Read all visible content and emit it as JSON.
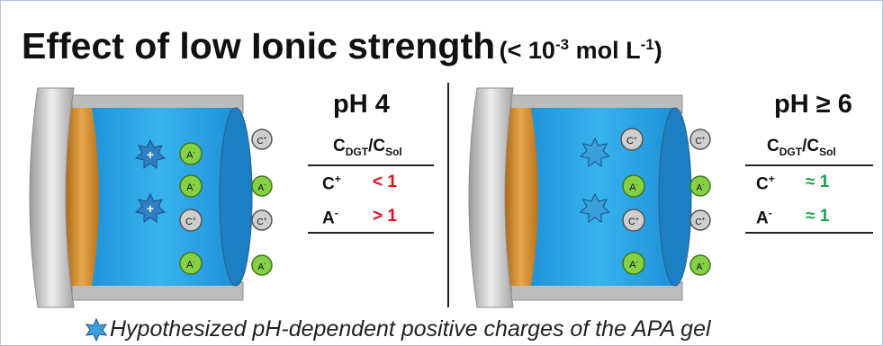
{
  "title": {
    "main": "Effect of low Ionic strength",
    "paren_prefix": "(< 10",
    "paren_exp1": "-3",
    "paren_mid": " mol L",
    "paren_exp2": "-1",
    "paren_suffix": ")"
  },
  "left_panel": {
    "ph_label": "pH 4",
    "header_main": "C",
    "header_sub1": "DGT",
    "header_slash": "/C",
    "header_sub2": "Sol",
    "rows": [
      {
        "ion": "C",
        "charge": "+",
        "value": "< 1",
        "color": "#e0101a"
      },
      {
        "ion": "A",
        "charge": "-",
        "value": "> 1",
        "color": "#e0101a"
      }
    ]
  },
  "right_panel": {
    "ph_label": "pH ≥ 6",
    "header_main": "C",
    "header_sub1": "DGT",
    "header_slash": "/C",
    "header_sub2": "Sol",
    "rows": [
      {
        "ion": "C",
        "charge": "+",
        "value": "≈ 1",
        "color": "#1aa34a"
      },
      {
        "ion": "A",
        "charge": "-",
        "value": "≈ 1",
        "color": "#1aa34a"
      }
    ]
  },
  "ion_labels": {
    "cation": "C+",
    "anion": "A-"
  },
  "footnote": "Hypothesized pH-dependent positive charges of the APA gel",
  "colors": {
    "gel": "#29a8e6",
    "filter": "#c8801e",
    "housing": "#c9c9c9",
    "cation": "#c7c7c7",
    "anion": "#7fcf3a",
    "star": "#3aa0dc"
  },
  "icons": [
    "star-charge-icon",
    "cation-ball-icon",
    "anion-ball-icon"
  ]
}
